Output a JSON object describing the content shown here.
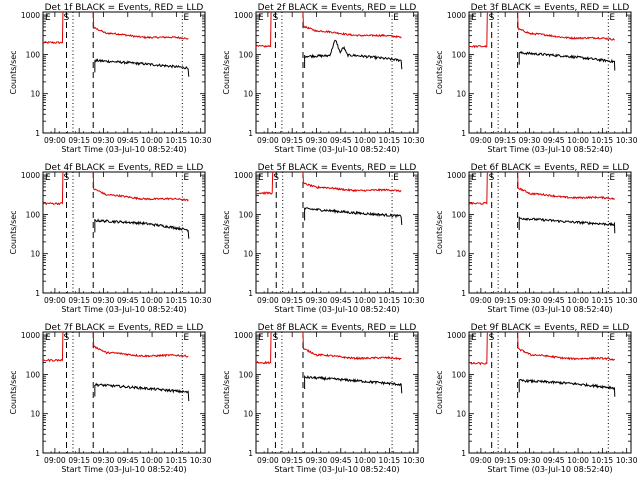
{
  "chart_data": {
    "type": "line",
    "panel_titles": [
      "Det 1f BLACK = Events, RED = LLD",
      "Det 2f BLACK = Events, RED = LLD",
      "Det 3f BLACK = Events, RED = LLD",
      "Det 4f BLACK = Events, RED = LLD",
      "Det 5f BLACK = Events, RED = LLD",
      "Det 6f BLACK = Events, RED = LLD",
      "Det 7f BLACK = Events, RED = LLD",
      "Det 8f BLACK = Events, RED = LLD",
      "Det 9f BLACK = Events, RED = LLD"
    ],
    "xlabel": "Start Time (03-Jul-10 08:52:40)",
    "ylabel": "Counts/sec",
    "x_tick_labels": [
      "09:00",
      "09:15",
      "09:30",
      "09:45",
      "10:00",
      "10:15",
      "10:30"
    ],
    "x_tick_minutes": [
      7.33,
      22.33,
      37.33,
      52.33,
      67.33,
      82.33,
      97.33
    ],
    "xlim_minutes": [
      0,
      100
    ],
    "y_tick_labels": [
      "1",
      "10",
      "100",
      "1000"
    ],
    "y_scale": "log",
    "ylim": [
      1,
      1200
    ],
    "colors": {
      "events": "#000000",
      "lld": "#e00000"
    },
    "markers": {
      "E": "E",
      "S": "S"
    },
    "panels": [
      {
        "det": "1f",
        "rise": 12,
        "s_dash": 14.5,
        "s_dot": 18.5,
        "g_end": 31,
        "e_dot": 86,
        "end": 90,
        "r_pre": 200,
        "r_peak": 480,
        "r_mid": 330,
        "r_end": 240,
        "b_start": 70,
        "b_mid": 58,
        "b_end": 45,
        "bump": 0
      },
      {
        "det": "2f",
        "rise": 9,
        "s_dash": 12,
        "s_dot": 16,
        "g_end": 29,
        "e_dot": 84,
        "end": 90,
        "r_pre": 160,
        "r_peak": 520,
        "r_mid": 380,
        "r_end": 260,
        "b_start": 90,
        "b_mid": 95,
        "b_end": 70,
        "bump": 1
      },
      {
        "det": "3f",
        "rise": 11,
        "s_dash": 14,
        "s_dot": 18,
        "g_end": 30,
        "e_dot": 86,
        "end": 90,
        "r_pre": 160,
        "r_peak": 450,
        "r_mid": 320,
        "r_end": 230,
        "b_start": 110,
        "b_mid": 90,
        "b_end": 65,
        "bump": 0
      },
      {
        "det": "4f",
        "rise": 12,
        "s_dash": 14.5,
        "s_dot": 18.5,
        "g_end": 31,
        "e_dot": 86,
        "end": 90,
        "r_pre": 190,
        "r_peak": 450,
        "r_mid": 300,
        "r_end": 220,
        "b_start": 70,
        "b_mid": 60,
        "b_end": 40,
        "bump": 0
      },
      {
        "det": "5f",
        "rise": 10,
        "s_dash": 12.5,
        "s_dot": 16.5,
        "g_end": 29,
        "e_dot": 84,
        "end": 90,
        "r_pre": 350,
        "r_peak": 620,
        "r_mid": 470,
        "r_end": 380,
        "b_start": 140,
        "b_mid": 110,
        "b_end": 90,
        "bump": 0
      },
      {
        "det": "6f",
        "rise": 11,
        "s_dash": 14,
        "s_dot": 18,
        "g_end": 30,
        "e_dot": 86,
        "end": 90,
        "r_pre": 190,
        "r_peak": 470,
        "r_mid": 320,
        "r_end": 240,
        "b_start": 80,
        "b_mid": 65,
        "b_end": 55,
        "bump": 0
      },
      {
        "det": "7f",
        "rise": 12,
        "s_dash": 14.5,
        "s_dot": 18.5,
        "g_end": 31,
        "e_dot": 86,
        "end": 90,
        "r_pre": 230,
        "r_peak": 520,
        "r_mid": 340,
        "r_end": 280,
        "b_start": 55,
        "b_mid": 45,
        "b_end": 35,
        "bump": 0
      },
      {
        "det": "8f",
        "rise": 9,
        "s_dash": 12,
        "s_dot": 16,
        "g_end": 29,
        "e_dot": 84,
        "end": 90,
        "r_pre": 200,
        "r_peak": 450,
        "r_mid": 300,
        "r_end": 240,
        "b_start": 85,
        "b_mid": 70,
        "b_end": 55,
        "bump": 0
      },
      {
        "det": "9f",
        "rise": 11,
        "s_dash": 14,
        "s_dot": 18,
        "g_end": 30,
        "e_dot": 86,
        "end": 90,
        "r_pre": 190,
        "r_peak": 450,
        "r_mid": 300,
        "r_end": 230,
        "b_start": 70,
        "b_mid": 60,
        "b_end": 45,
        "bump": 0
      }
    ]
  }
}
